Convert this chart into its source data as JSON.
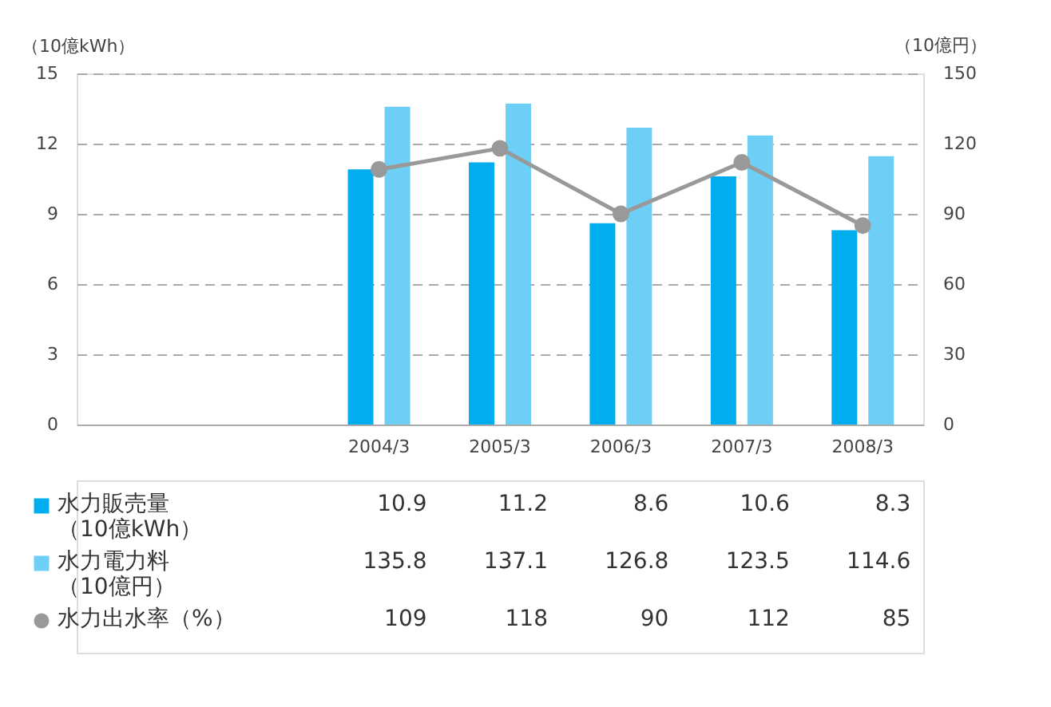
{
  "chart_data": {
    "type": "bar",
    "categories": [
      null,
      null,
      "2004/3",
      "2005/3",
      "2006/3",
      "2007/3",
      "2008/3"
    ],
    "ylabel": "（10億kWh）",
    "y2label": "（10億円）",
    "ylim": [
      0,
      15
    ],
    "yticks": [
      0,
      3,
      6,
      9,
      12,
      15
    ],
    "y2lim": [
      0,
      150
    ],
    "y2ticks": [
      0,
      30,
      60,
      90,
      120,
      150
    ],
    "series": [
      {
        "name": "水力販売量（10億kWh）",
        "color": "#00aeef",
        "values": [
          null,
          null,
          10.9,
          11.2,
          8.6,
          10.6,
          8.3
        ]
      },
      {
        "name": "水力電力料（10億円）",
        "color": "#6dcff6",
        "axis": "y2",
        "values": [
          null,
          null,
          135.8,
          137.1,
          126.8,
          123.5,
          114.6
        ]
      },
      {
        "name": "水力出水率（%）",
        "type": "line",
        "marker": "circle",
        "color": "#999999",
        "axis": "y2",
        "values": [
          null,
          null,
          109,
          118,
          90,
          112,
          85
        ]
      }
    ],
    "grid": "y",
    "legend": "bottom",
    "data_labels": true
  }
}
